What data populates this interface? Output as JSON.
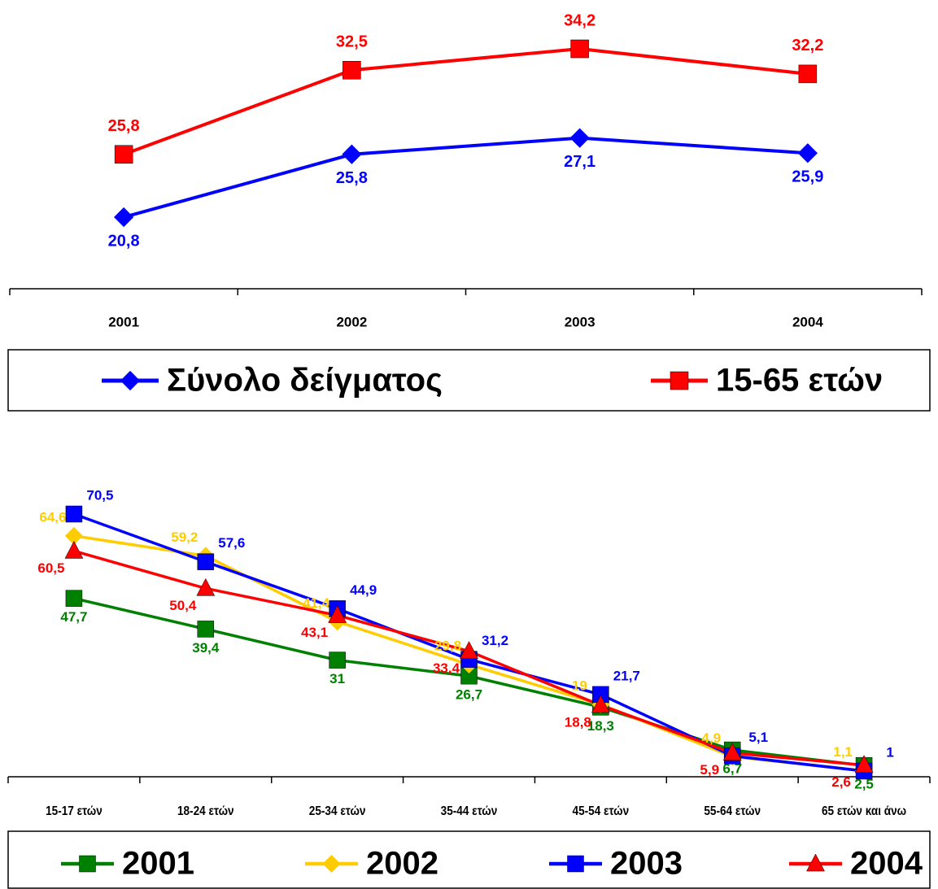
{
  "chart_data": [
    {
      "type": "line",
      "categories": [
        "2001",
        "2002",
        "2003",
        "2004"
      ],
      "series": [
        {
          "name": "Σύνολο δείγματος",
          "color": "#0000ff",
          "marker": "diamond",
          "values": [
            20.8,
            25.8,
            27.1,
            25.9
          ],
          "value_labels": [
            "20,8",
            "25,8",
            "27,1",
            "25,9"
          ]
        },
        {
          "name": "15-65 ετών",
          "color": "#ff0000",
          "marker": "square",
          "values": [
            25.8,
            32.5,
            34.2,
            32.2
          ],
          "value_labels": [
            "25,8",
            "32,5",
            "34,2",
            "32,2"
          ]
        }
      ]
    },
    {
      "type": "line",
      "categories": [
        "15-17 ετών",
        "18-24 ετών",
        "25-34 ετών",
        "35-44 ετών",
        "45-54 ετών",
        "55-64 ετών",
        "65 ετών και άνω"
      ],
      "series": [
        {
          "name": "2001",
          "color": "#008000",
          "marker": "square",
          "values": [
            47.7,
            39.4,
            31,
            26.7,
            18.3,
            6.7,
            2.5
          ],
          "value_labels": [
            "47,7",
            "39,4",
            "31",
            "26,7",
            "18,3",
            "6,7",
            "2,5"
          ]
        },
        {
          "name": "2002",
          "color": "#ffcc00",
          "marker": "diamond",
          "values": [
            64.6,
            59.2,
            41.4,
            29.8,
            19,
            4.9,
            1.1
          ],
          "value_labels": [
            "64,6",
            "59,2",
            "41,4",
            "29,8",
            "19",
            "4,9",
            "1,1"
          ]
        },
        {
          "name": "2003",
          "color": "#0000ff",
          "marker": "square",
          "values": [
            70.5,
            57.6,
            44.9,
            31.2,
            21.7,
            5.1,
            1
          ],
          "value_labels": [
            "70,5",
            "57,6",
            "44,9",
            "31,2",
            "21,7",
            "5,1",
            "1"
          ]
        },
        {
          "name": "2004",
          "color": "#ff0000",
          "marker": "triangle",
          "values": [
            60.5,
            50.4,
            43.1,
            33.4,
            18.8,
            5.9,
            2.6
          ],
          "value_labels": [
            "60,5",
            "50,4",
            "43,1",
            "33,4",
            "18,8",
            "5,9",
            "2,6"
          ]
        }
      ]
    }
  ]
}
